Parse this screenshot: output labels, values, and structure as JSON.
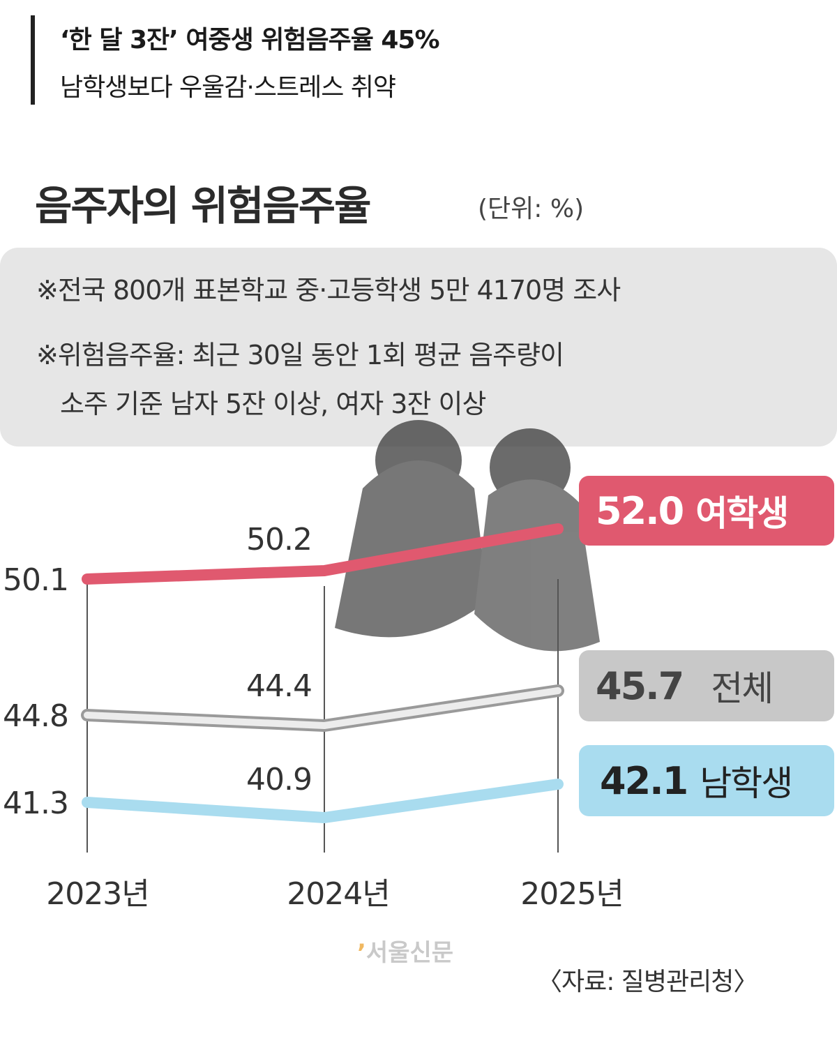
{
  "headline": {
    "line1": "‘한 달 3잔’ 여중생 위험음주율 45%",
    "line2": "남학생보다 우울감·스트레스 취약"
  },
  "chart_title": "음주자의 위험음주율",
  "unit": "(단위: %)",
  "notes": [
    "※전국 800개 표본학교 중·고등학생 5만 4170명 조사",
    "※위험음주율: 최근 30일 동안 1회 평균 음주량이",
    "소주 기준 남자 5잔 이상, 여자 3잔 이상"
  ],
  "chart_data": {
    "type": "line",
    "x": [
      "2023년",
      "2024년",
      "2025년"
    ],
    "series": [
      {
        "name": "여학생",
        "values": [
          50.1,
          50.2,
          52.0
        ],
        "color": "#e0596f",
        "end_label": "52.0"
      },
      {
        "name": "전체",
        "values": [
          44.8,
          44.4,
          45.7
        ],
        "color": "#d0d0d0",
        "end_label": "45.7"
      },
      {
        "name": "남학생",
        "values": [
          41.3,
          40.9,
          42.1
        ],
        "color": "#a9dcef",
        "end_label": "42.1"
      }
    ],
    "point_labels": {
      "2023년": [
        "50.1",
        "44.8",
        "41.3"
      ],
      "2024년": [
        "50.2",
        "44.4",
        "40.9"
      ]
    },
    "grid": "vertical lines at each year"
  },
  "logo": {
    "mark": "’",
    "text": "서울신문"
  },
  "source": "〈자료: 질병관리청〉"
}
